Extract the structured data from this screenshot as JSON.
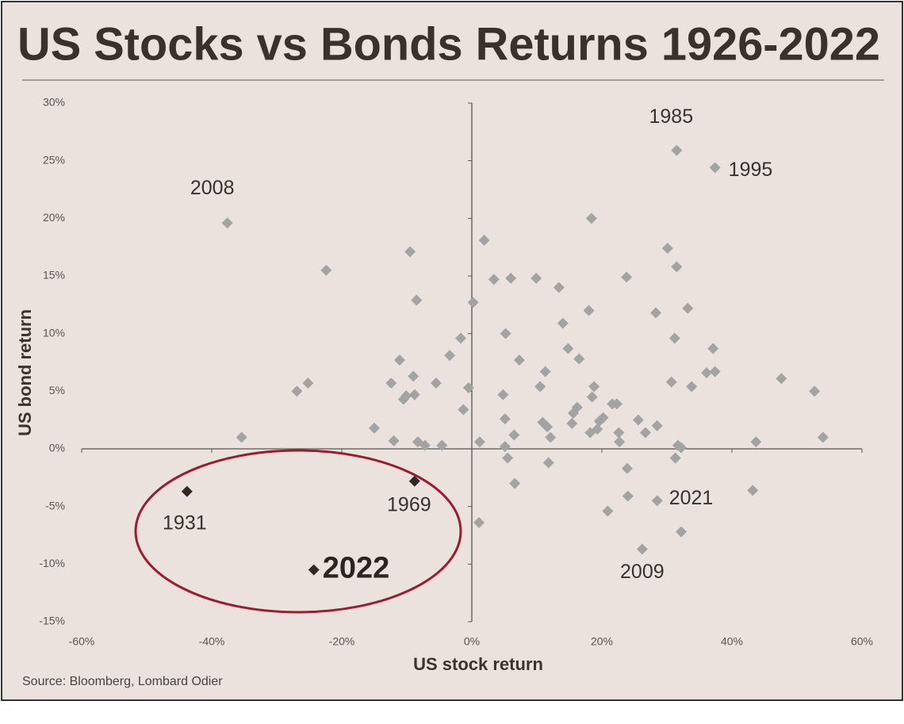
{
  "chart_data": {
    "type": "scatter",
    "title": "US Stocks vs Bonds Returns 1926-2022",
    "x_label": "US stock return",
    "y_label": "US bond return",
    "source": "Source: Bloomberg, Lombard Odier",
    "xlim": [
      -60,
      60
    ],
    "ylim": [
      -15,
      30
    ],
    "xticks": [
      {
        "value": -60,
        "label": "-60%"
      },
      {
        "value": -40,
        "label": "-40%"
      },
      {
        "value": -20,
        "label": "-20%"
      },
      {
        "value": 0,
        "label": "0%"
      },
      {
        "value": 20,
        "label": "20%"
      },
      {
        "value": 40,
        "label": "40%"
      },
      {
        "value": 60,
        "label": "60%"
      }
    ],
    "yticks": [
      {
        "value": 30,
        "label": "30%"
      },
      {
        "value": 25,
        "label": "25%"
      },
      {
        "value": 20,
        "label": "20%"
      },
      {
        "value": 15,
        "label": "15%"
      },
      {
        "value": 10,
        "label": "10%"
      },
      {
        "value": 5,
        "label": "5%"
      },
      {
        "value": 0,
        "label": "0%"
      },
      {
        "value": -5,
        "label": "-5%"
      },
      {
        "value": -10,
        "label": "-10%"
      },
      {
        "value": -15,
        "label": "-15%"
      }
    ],
    "series": [
      {
        "color": "#a3a3a3",
        "x": [
          -37.6,
          -35.4,
          -22.4,
          -26.9,
          -25.2,
          -15.0,
          -12.4,
          -12.0,
          -11.1,
          -10.5,
          -10.1,
          -9.5,
          -9.0,
          -8.8,
          -8.5,
          -8.3,
          -7.2,
          -5.5,
          -4.6,
          -3.4,
          -1.7,
          -1.3,
          -0.5,
          0.2,
          1.1,
          1.2,
          1.9,
          3.4,
          4.8,
          5.2,
          5.1,
          5.1,
          5.5,
          6.0,
          6.5,
          6.6,
          7.3,
          9.9,
          10.5,
          10.9,
          11.3,
          11.6,
          11.8,
          12.1,
          13.4,
          14.0,
          14.8,
          15.4,
          15.6,
          16.2,
          16.5,
          18.0,
          18.2,
          18.4,
          18.5,
          18.8,
          19.3,
          19.6,
          20.2,
          20.9,
          21.6,
          22.3,
          22.6,
          22.7,
          23.8,
          23.9,
          24.0,
          25.6,
          26.2,
          26.7,
          28.3,
          28.5,
          28.5,
          30.1,
          30.7,
          31.2,
          31.3,
          31.5,
          31.5,
          31.7,
          32.2,
          32.2,
          33.2,
          33.8,
          36.1,
          37.1,
          37.4,
          37.4,
          43.2,
          43.7,
          47.6,
          52.7,
          54.0
        ],
        "y": [
          19.6,
          1.0,
          15.5,
          5.0,
          5.7,
          1.8,
          5.7,
          0.7,
          7.7,
          4.3,
          4.6,
          17.1,
          6.3,
          4.7,
          12.9,
          0.6,
          0.3,
          5.7,
          0.3,
          8.1,
          9.6,
          3.4,
          5.3,
          12.7,
          -6.4,
          0.6,
          18.1,
          14.7,
          4.7,
          10.0,
          2.6,
          0.2,
          -0.8,
          14.8,
          1.2,
          -3.0,
          7.7,
          14.8,
          5.4,
          2.3,
          6.7,
          1.9,
          -1.2,
          1.0,
          14.0,
          10.9,
          8.7,
          2.2,
          3.1,
          3.6,
          7.8,
          12.0,
          1.4,
          20.0,
          4.5,
          5.4,
          1.7,
          2.4,
          2.7,
          -5.4,
          3.9,
          3.9,
          1.4,
          0.6,
          14.9,
          -1.7,
          -4.1,
          2.5,
          -8.7,
          1.4,
          11.8,
          -4.5,
          2.0,
          17.4,
          5.8,
          9.6,
          -0.8,
          15.8,
          25.9,
          0.3,
          0.1,
          -7.2,
          12.2,
          5.4,
          6.6,
          8.7,
          6.7,
          24.4,
          -3.6,
          0.6,
          6.1,
          5.0,
          1.0
        ],
        "labels": [
          "2008",
          null,
          null,
          null,
          null,
          null,
          null,
          null,
          null,
          null,
          null,
          null,
          null,
          null,
          null,
          null,
          null,
          null,
          null,
          null,
          null,
          null,
          null,
          null,
          null,
          null,
          null,
          null,
          null,
          null,
          null,
          null,
          null,
          null,
          null,
          null,
          null,
          null,
          null,
          null,
          null,
          null,
          null,
          null,
          null,
          null,
          null,
          null,
          null,
          null,
          null,
          null,
          null,
          null,
          null,
          null,
          null,
          null,
          null,
          null,
          null,
          null,
          null,
          null,
          null,
          null,
          null,
          null,
          "2009",
          null,
          null,
          "2021",
          null,
          null,
          null,
          null,
          null,
          null,
          "1985",
          null,
          null,
          null,
          null,
          null,
          null,
          null,
          null,
          "1995",
          null,
          null,
          null,
          null,
          null
        ]
      },
      {
        "color": "#2f2a28",
        "x": [
          -43.8,
          -8.8,
          -24.3
        ],
        "y": [
          -3.7,
          -2.8,
          -10.5
        ],
        "labels": [
          "1931",
          "1969",
          "2022"
        ]
      }
    ]
  }
}
